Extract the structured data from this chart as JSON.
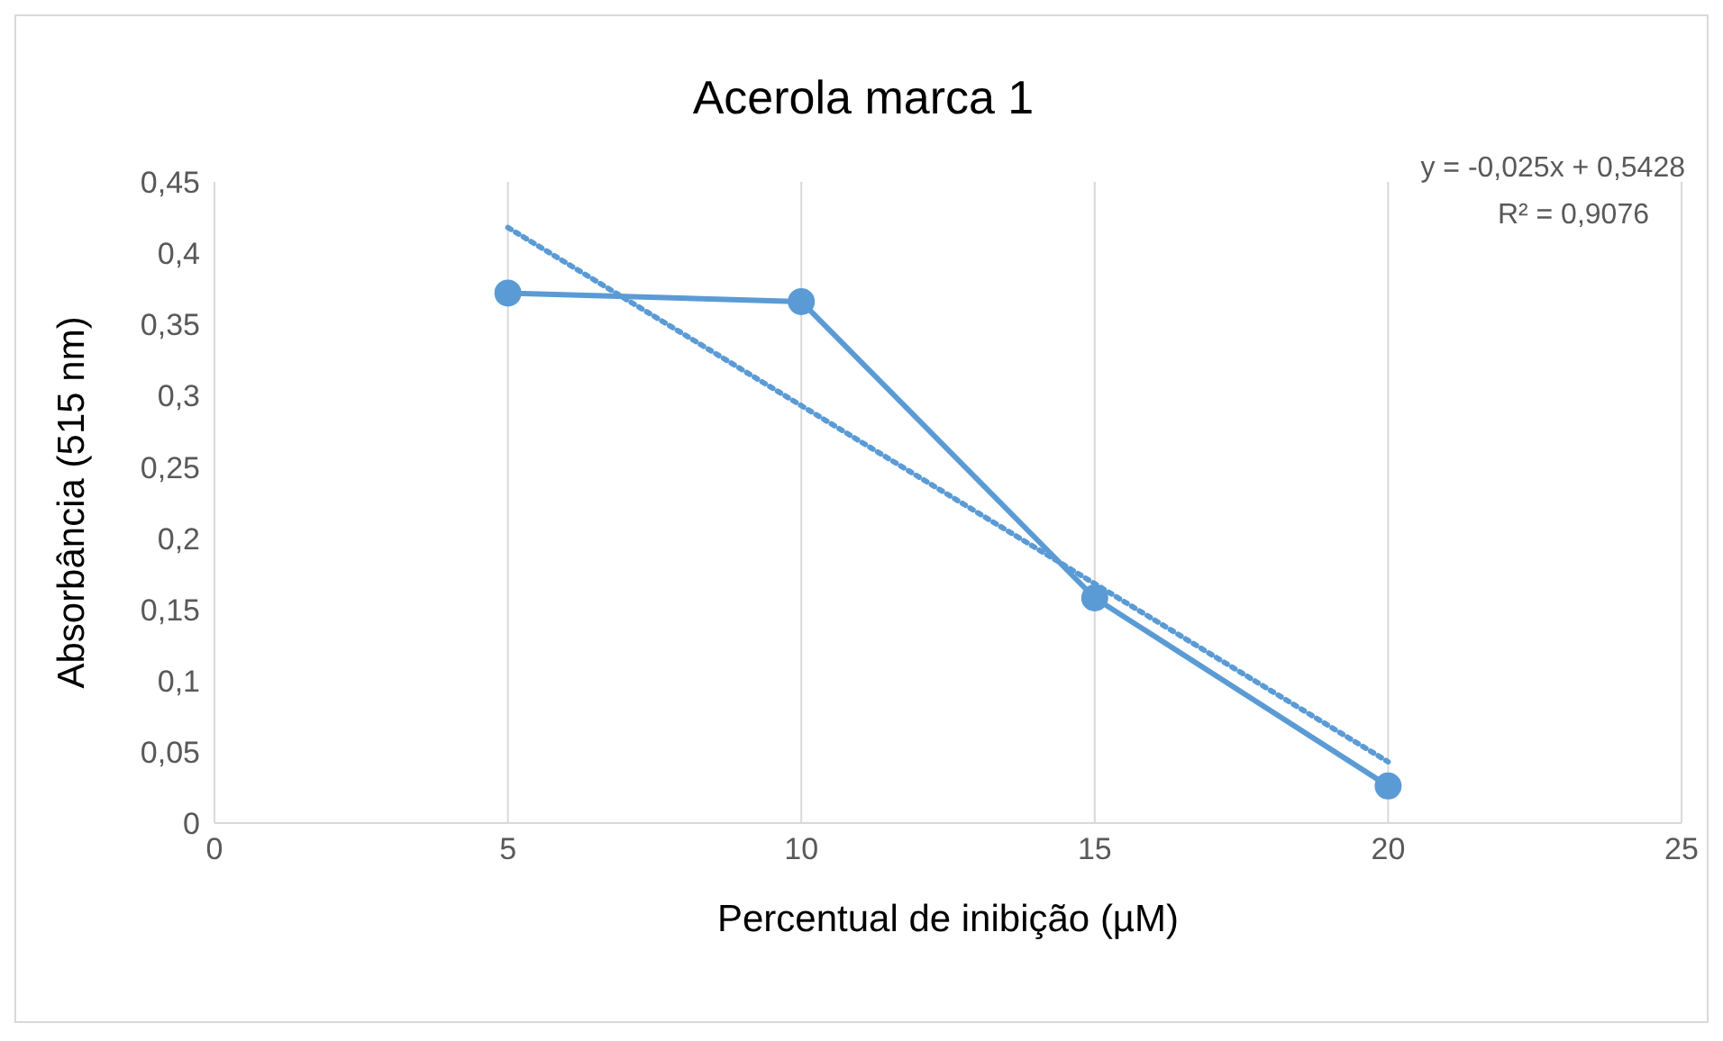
{
  "chart_data": {
    "type": "line",
    "title": "Acerola marca 1",
    "xlabel": "Percentual de inibição (µM)",
    "ylabel": "Absorbância (515 nm)",
    "annotations": [
      "y = -0,025x + 0,5428",
      "R² = 0,9076"
    ],
    "x": [
      5,
      10,
      15,
      20
    ],
    "series": [
      {
        "color": "#5b9bd5",
        "values": [
          0.372,
          0.366,
          0.158,
          0.026
        ],
        "marker": "circle",
        "line_style": "solid"
      },
      {
        "type": "line",
        "color": "#5b9bd5",
        "x": [
          5,
          20
        ],
        "values": [
          0.418,
          0.043
        ],
        "marker": "none",
        "line_style": "dotted"
      }
    ],
    "xlim": [
      0,
      25
    ],
    "xticks": [
      0,
      5,
      10,
      15,
      20,
      25
    ],
    "ylim": [
      0,
      0.45
    ],
    "yticks": [
      0,
      {
        "value": 0.05,
        "label": "0,05"
      },
      {
        "value": 0.1,
        "label": "0,1"
      },
      {
        "value": 0.15,
        "label": "0,15"
      },
      {
        "value": 0.2,
        "label": "0,2"
      },
      {
        "value": 0.25,
        "label": "0,25"
      },
      {
        "value": 0.3,
        "label": "0,3"
      },
      {
        "value": 0.35,
        "label": "0,35"
      },
      {
        "value": 0.4,
        "label": "0,4"
      },
      {
        "value": 0.45,
        "label": "0,45"
      }
    ],
    "grid": "x",
    "legend": false
  }
}
